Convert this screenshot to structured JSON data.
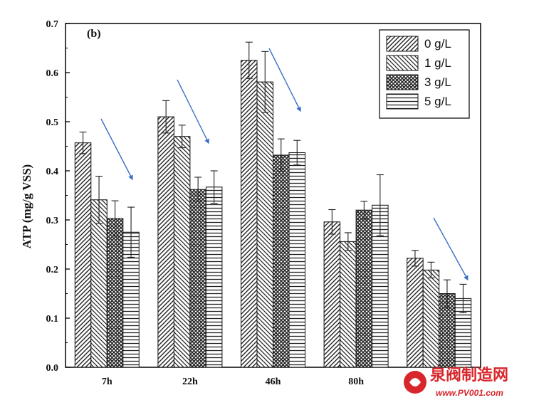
{
  "chart_data": {
    "type": "bar",
    "panel_label": "(b)",
    "ylabel": "ATP (mg/g VSS)",
    "xlabel": "",
    "ylim": [
      0,
      0.7
    ],
    "yticks": [
      "0.0",
      "0.1",
      "0.2",
      "0.3",
      "0.4",
      "0.5",
      "0.6",
      "0.7"
    ],
    "categories": [
      "7h",
      "22h",
      "46h",
      "80h",
      ""
    ],
    "legend_position": "top-right",
    "series": [
      {
        "name": "0 g/L",
        "pattern": "hatch-fwd",
        "values": [
          0.457,
          0.51,
          0.625,
          0.296,
          0.222
        ],
        "errors": [
          0.022,
          0.033,
          0.037,
          0.025,
          0.016
        ]
      },
      {
        "name": "1 g/L",
        "pattern": "hatch-back",
        "values": [
          0.341,
          0.47,
          0.581,
          0.256,
          0.198
        ],
        "errors": [
          0.048,
          0.023,
          0.062,
          0.018,
          0.016
        ]
      },
      {
        "name": "3 g/L",
        "pattern": "crosshatch",
        "values": [
          0.303,
          0.362,
          0.432,
          0.32,
          0.15
        ],
        "errors": [
          0.036,
          0.025,
          0.033,
          0.018,
          0.028
        ]
      },
      {
        "name": "5 g/L",
        "pattern": "horizontal",
        "values": [
          0.275,
          0.367,
          0.437,
          0.33,
          0.14
        ],
        "errors": [
          0.051,
          0.033,
          0.025,
          0.062,
          0.029
        ]
      }
    ],
    "annotations": {
      "arrows": "blue arrows indicating decreasing trend at 7h, 22h, 46h and the last time point",
      "arrow_color": "#3b6fc6"
    }
  },
  "watermark": {
    "chinese": "泉阀制造网",
    "url": "www.PV001.com",
    "color": "#d8262b"
  }
}
